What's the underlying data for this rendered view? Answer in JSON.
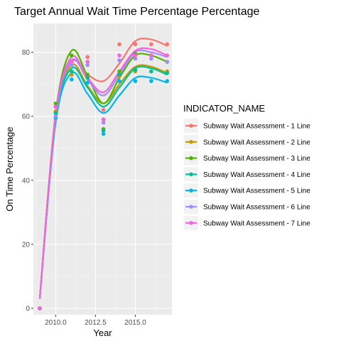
{
  "chart_data": {
    "type": "scatter",
    "title": "Target Annual Wait Time Percentage Percentage",
    "xlabel": "Year",
    "ylabel": "On Time Percentage",
    "xlim": [
      2008.6,
      2017.3
    ],
    "ylim": [
      -2,
      89
    ],
    "x_ticks": [
      2010.0,
      2012.5,
      2015.0
    ],
    "x_tick_labels": [
      "2010.0",
      "2012.5",
      "2015.0"
    ],
    "y_ticks": [
      0,
      20,
      40,
      60,
      80
    ],
    "y_tick_labels": [
      "0",
      "20",
      "40",
      "60",
      "80"
    ],
    "grid": true,
    "smooth_lines": true,
    "legend": {
      "title": "INDICATOR_NAME",
      "placement": "right"
    },
    "series": [
      {
        "name": "Subway Wait Assessment - 1 Line",
        "color": "#F8766D",
        "points": [
          [
            2009,
            0
          ],
          [
            2010,
            63
          ],
          [
            2011,
            77
          ],
          [
            2012,
            78.5
          ],
          [
            2013,
            62
          ],
          [
            2014,
            82.5
          ],
          [
            2015,
            82.5
          ],
          [
            2016,
            82.5
          ],
          [
            2017,
            82.5
          ]
        ],
        "trend": [
          [
            2009,
            3
          ],
          [
            2010,
            60.5
          ],
          [
            2011,
            77
          ],
          [
            2012,
            73
          ],
          [
            2013,
            71
          ],
          [
            2014,
            76.5
          ],
          [
            2015,
            83.5
          ],
          [
            2016,
            84
          ],
          [
            2017,
            82
          ]
        ]
      },
      {
        "name": "Subway Wait Assessment - 2 Line",
        "color": "#C49A00",
        "points": [
          [
            2009,
            0
          ],
          [
            2010,
            61.5
          ],
          [
            2011,
            73
          ],
          [
            2012,
            72
          ],
          [
            2013,
            59
          ],
          [
            2014,
            72.5
          ],
          [
            2015,
            74
          ],
          [
            2016,
            74
          ],
          [
            2017,
            74
          ]
        ],
        "trend": [
          [
            2009,
            3
          ],
          [
            2010,
            59.5
          ],
          [
            2011,
            76
          ],
          [
            2012,
            69.5
          ],
          [
            2013,
            64
          ],
          [
            2014,
            70
          ],
          [
            2015,
            75.5
          ],
          [
            2016,
            75.5
          ],
          [
            2017,
            73.5
          ]
        ]
      },
      {
        "name": "Subway Wait Assessment - 3 Line",
        "color": "#53B400",
        "points": [
          [
            2009,
            0
          ],
          [
            2010,
            64
          ],
          [
            2011,
            79
          ],
          [
            2012,
            73
          ],
          [
            2013,
            56
          ],
          [
            2014,
            74
          ],
          [
            2015,
            79.5
          ],
          [
            2016,
            79
          ],
          [
            2017,
            77
          ]
        ],
        "trend": [
          [
            2009,
            3
          ],
          [
            2010,
            61
          ],
          [
            2011,
            80.5
          ],
          [
            2012,
            72.5
          ],
          [
            2013,
            64
          ],
          [
            2014,
            72
          ],
          [
            2015,
            79
          ],
          [
            2016,
            79
          ],
          [
            2017,
            77
          ]
        ]
      },
      {
        "name": "Subway Wait Assessment - 4 Line",
        "color": "#00C094",
        "points": [
          [
            2009,
            0
          ],
          [
            2010,
            61
          ],
          [
            2011,
            74
          ],
          [
            2012,
            72
          ],
          [
            2013,
            55.5
          ],
          [
            2014,
            73
          ],
          [
            2015,
            74.5
          ],
          [
            2016,
            74
          ],
          [
            2017,
            73.5
          ]
        ],
        "trend": [
          [
            2009,
            3
          ],
          [
            2010,
            59
          ],
          [
            2011,
            75
          ],
          [
            2012,
            69
          ],
          [
            2013,
            63
          ],
          [
            2014,
            69
          ],
          [
            2015,
            75
          ],
          [
            2016,
            75
          ],
          [
            2017,
            73
          ]
        ]
      },
      {
        "name": "Subway Wait Assessment - 5 Line",
        "color": "#00B6EB",
        "points": [
          [
            2009,
            0
          ],
          [
            2010,
            59.5
          ],
          [
            2011,
            71.5
          ],
          [
            2012,
            70.5
          ],
          [
            2013,
            54.5
          ],
          [
            2014,
            71
          ],
          [
            2015,
            71
          ],
          [
            2016,
            71
          ],
          [
            2017,
            71
          ]
        ],
        "trend": [
          [
            2009,
            3
          ],
          [
            2010,
            58
          ],
          [
            2011,
            73.5
          ],
          [
            2012,
            67
          ],
          [
            2013,
            61
          ],
          [
            2014,
            66.5
          ],
          [
            2015,
            72
          ],
          [
            2016,
            72
          ],
          [
            2017,
            70.5
          ]
        ]
      },
      {
        "name": "Subway Wait Assessment - 6 Line",
        "color": "#A58AFF",
        "points": [
          [
            2009,
            0
          ],
          [
            2010,
            60
          ],
          [
            2011,
            76
          ],
          [
            2012,
            76
          ],
          [
            2013,
            58
          ],
          [
            2014,
            77.5
          ],
          [
            2015,
            78
          ],
          [
            2016,
            78
          ],
          [
            2017,
            77
          ]
        ],
        "trend": [
          [
            2009,
            3
          ],
          [
            2010,
            59.5
          ],
          [
            2011,
            77.5
          ],
          [
            2012,
            71.5
          ],
          [
            2013,
            66.5
          ],
          [
            2014,
            73
          ],
          [
            2015,
            80
          ],
          [
            2016,
            80
          ],
          [
            2017,
            78.5
          ]
        ]
      },
      {
        "name": "Subway Wait Assessment - 7 Line",
        "color": "#FB61D7",
        "points": [
          [
            2009,
            0
          ],
          [
            2010,
            63
          ],
          [
            2011,
            77
          ],
          [
            2012,
            77
          ],
          [
            2013,
            59
          ],
          [
            2014,
            79
          ],
          [
            2015,
            79
          ],
          [
            2016,
            79
          ],
          [
            2017,
            79
          ]
        ],
        "trend": [
          [
            2009,
            3
          ],
          [
            2010,
            60.5
          ],
          [
            2011,
            78.5
          ],
          [
            2012,
            72
          ],
          [
            2013,
            67.5
          ],
          [
            2014,
            74
          ],
          [
            2015,
            80.5
          ],
          [
            2016,
            81
          ],
          [
            2017,
            79
          ]
        ]
      }
    ]
  }
}
